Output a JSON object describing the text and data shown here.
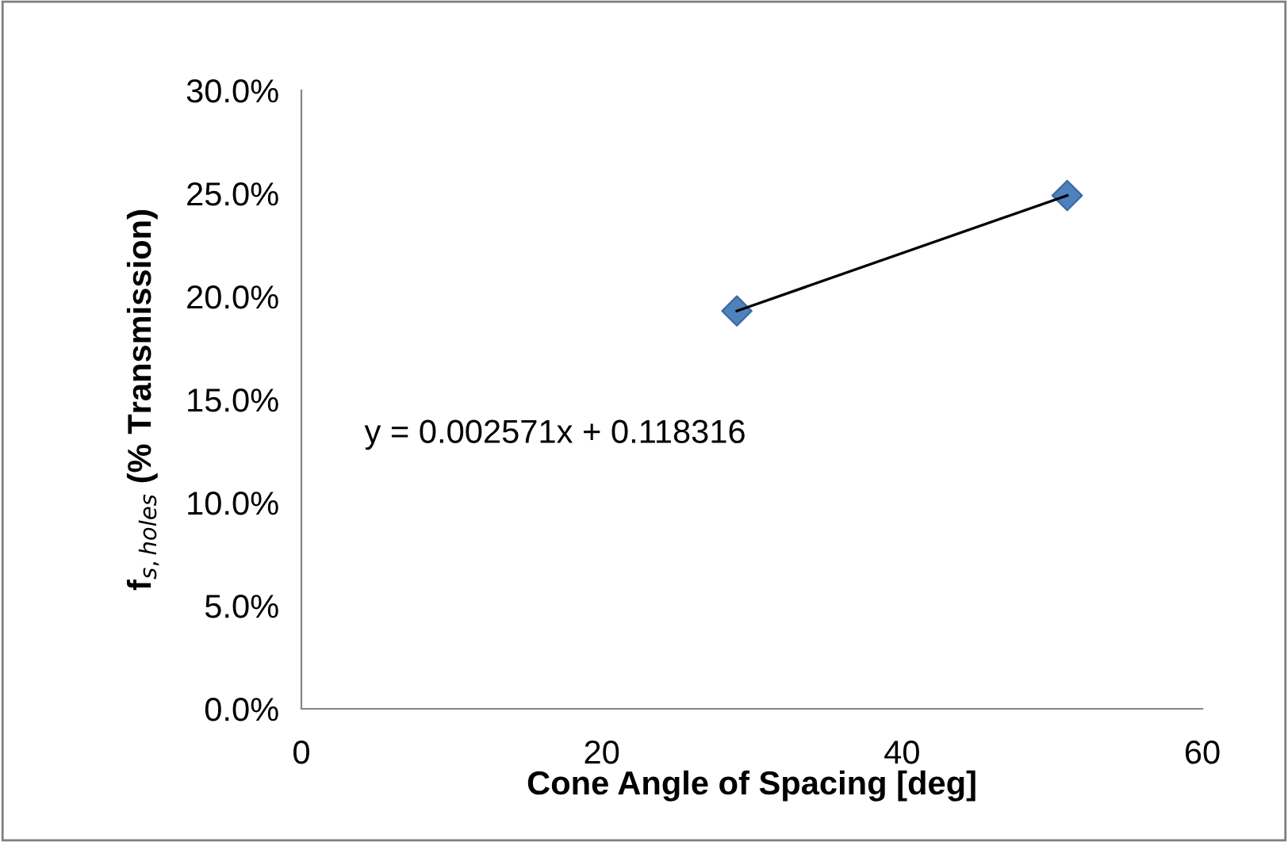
{
  "chart_data": {
    "type": "scatter",
    "xlabel": "Cone Angle of Spacing [deg]",
    "ylabel": "f$_{s,holes}$ (% Transmission)",
    "series": [
      {
        "color": "#4f81bd",
        "values": [
          19.3,
          24.9
        ],
        "marker": "diamond"
      },
      {
        "type": "line",
        "color": "#000000",
        "values": [
          19.3,
          24.9
        ],
        "marker": "none",
        "line_style": "solid"
      }
    ],
    "x": [
      29,
      51
    ],
    "annotations": [
      "y = 0.002571x + 0.118316"
    ],
    "xlim": [
      0,
      60
    ],
    "xticks": [
      0,
      20,
      40,
      60
    ],
    "ylim": [
      0,
      30
    ],
    "yticks": [
      {
        "value": 0,
        "label": "0.0%"
      },
      {
        "value": 5,
        "label": "5.0%"
      },
      {
        "value": 10,
        "label": "10.0%"
      },
      {
        "value": 15,
        "label": "15.0%"
      },
      {
        "value": 20,
        "label": "20.0%"
      },
      {
        "value": 25,
        "label": "25.0%"
      },
      {
        "value": 30,
        "label": "30.0%"
      }
    ],
    "grid": false,
    "legend": false
  }
}
